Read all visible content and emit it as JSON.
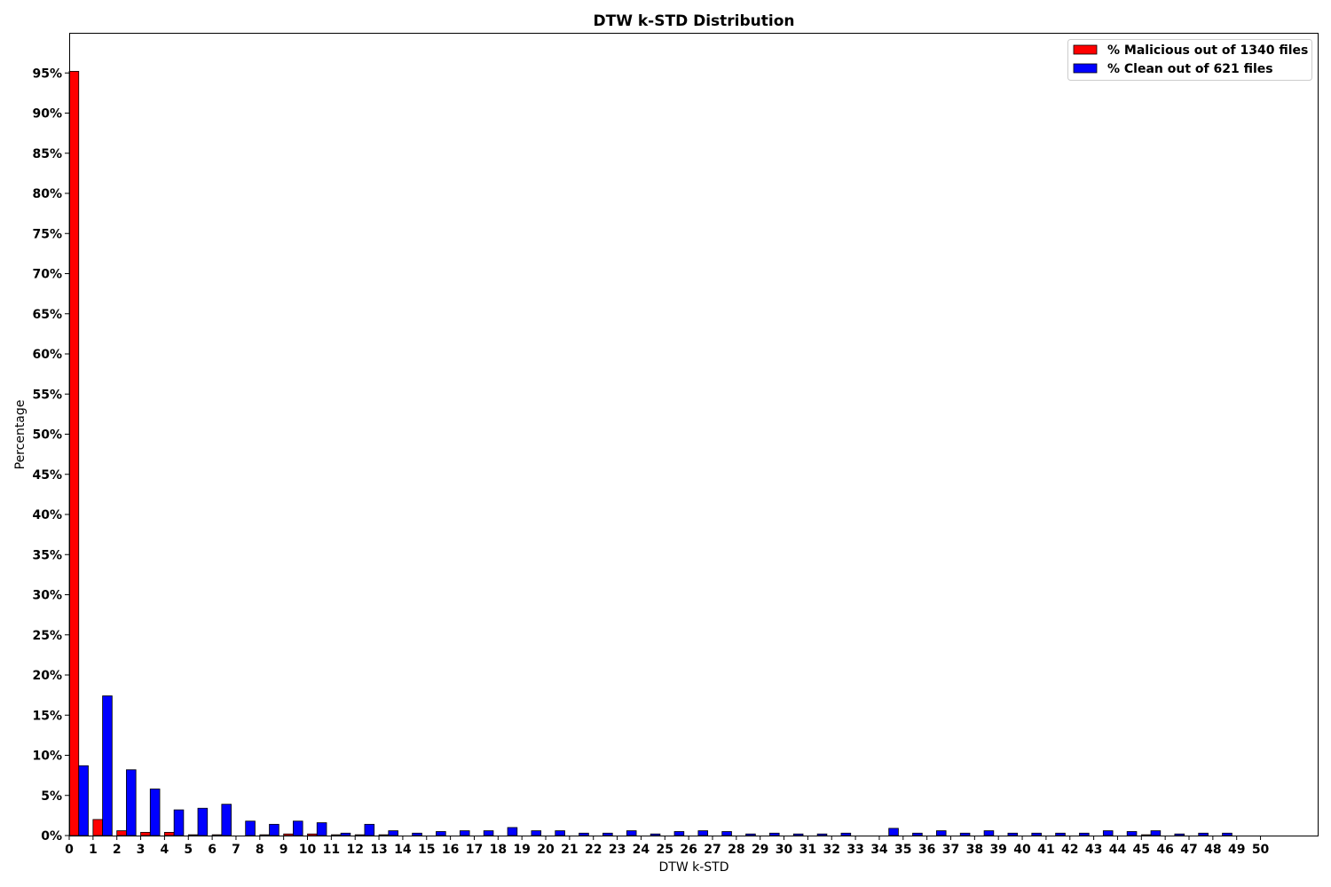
{
  "chart_data": {
    "type": "bar",
    "title": "DTW k-STD Distribution",
    "xlabel": "DTW k-STD",
    "ylabel": "Percentage",
    "x": [
      0,
      1,
      2,
      3,
      4,
      5,
      6,
      7,
      8,
      9,
      10,
      11,
      12,
      13,
      14,
      15,
      16,
      17,
      18,
      19,
      20,
      21,
      22,
      23,
      24,
      25,
      26,
      27,
      28,
      29,
      30,
      31,
      32,
      33,
      34,
      35,
      36,
      37,
      38,
      39,
      40,
      41,
      42,
      43,
      44,
      45,
      46,
      47,
      48,
      49,
      50
    ],
    "xticks": [
      "0",
      "1",
      "2",
      "3",
      "4",
      "5",
      "6",
      "7",
      "8",
      "9",
      "10",
      "11",
      "12",
      "13",
      "14",
      "15",
      "16",
      "17",
      "18",
      "19",
      "20",
      "21",
      "22",
      "23",
      "24",
      "25",
      "26",
      "27",
      "28",
      "29",
      "30",
      "31",
      "32",
      "33",
      "34",
      "35",
      "36",
      "37",
      "38",
      "39",
      "40",
      "41",
      "42",
      "43",
      "44",
      "45",
      "46",
      "47",
      "48",
      "49",
      "50"
    ],
    "yticks": [
      0,
      5,
      10,
      15,
      20,
      25,
      30,
      35,
      40,
      45,
      50,
      55,
      60,
      65,
      70,
      75,
      80,
      85,
      90,
      95
    ],
    "ytick_labels": [
      "0%",
      "5%",
      "10%",
      "15%",
      "20%",
      "25%",
      "30%",
      "35%",
      "40%",
      "45%",
      "50%",
      "55%",
      "60%",
      "65%",
      "70%",
      "75%",
      "80%",
      "85%",
      "90%",
      "95%"
    ],
    "xlim": [
      0,
      52.4
    ],
    "ylim": [
      0,
      100
    ],
    "grid": false,
    "legend_position": "top-right",
    "series": [
      {
        "name": "% Malicious out of 1340 files",
        "color": "#ff0000",
        "values": [
          95.2,
          2.0,
          0.6,
          0.4,
          0.4,
          0.1,
          0.1,
          0,
          0.1,
          0.2,
          0.2,
          0.1,
          0.1,
          0.1,
          0,
          0,
          0,
          0,
          0,
          0,
          0,
          0,
          0,
          0,
          0,
          0,
          0,
          0,
          0,
          0,
          0,
          0,
          0,
          0,
          0,
          0,
          0,
          0,
          0,
          0,
          0,
          0,
          0,
          0,
          0,
          0.1,
          0,
          0,
          0,
          0,
          0
        ]
      },
      {
        "name": "% Clean out of 621 files",
        "color": "#0000ff",
        "values": [
          8.7,
          17.4,
          8.2,
          5.8,
          3.2,
          3.4,
          3.9,
          1.8,
          1.4,
          1.8,
          1.6,
          0.3,
          1.4,
          0.6,
          0.3,
          0.5,
          0.6,
          0.6,
          1.0,
          0.6,
          0.6,
          0.3,
          0.3,
          0.6,
          0.2,
          0.5,
          0.6,
          0.5,
          0.2,
          0.3,
          0.2,
          0.2,
          0.3,
          0,
          0.9,
          0.3,
          0.6,
          0.3,
          0.6,
          0.3,
          0.3,
          0.3,
          0.3,
          0.6,
          0.5,
          0.6,
          0.2,
          0.3,
          0.3,
          0,
          0
        ]
      }
    ]
  }
}
